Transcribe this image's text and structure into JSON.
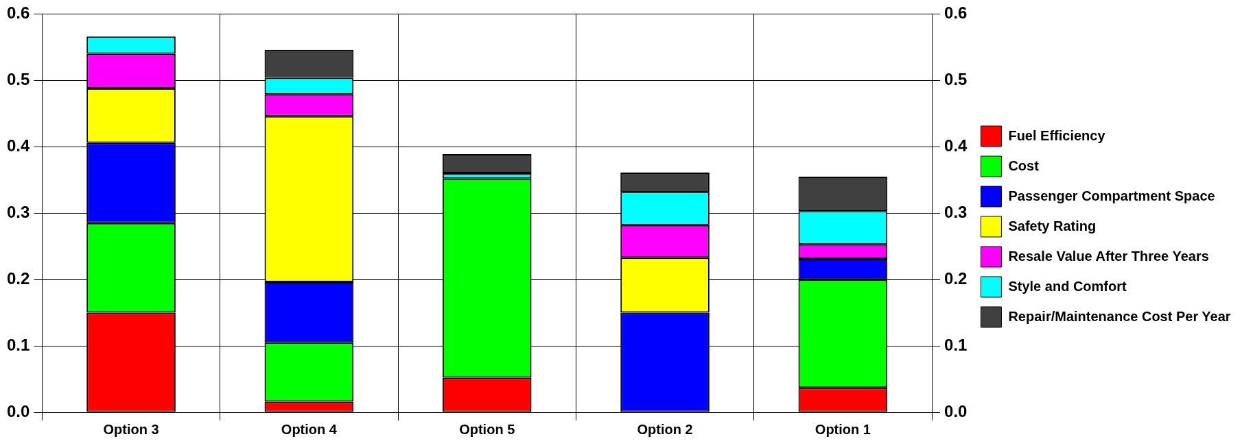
{
  "chart_data": {
    "type": "bar",
    "stacked": true,
    "categories": [
      "Option 3",
      "Option 4",
      "Option 5",
      "Option 2",
      "Option 1"
    ],
    "series": [
      {
        "name": "Fuel Efficiency",
        "color": "#ff0000",
        "values": [
          0.15,
          0.016,
          0.052,
          0,
          0.037
        ]
      },
      {
        "name": "Cost",
        "color": "#00ff00",
        "values": [
          0.135,
          0.089,
          0.3,
          0,
          0.163
        ]
      },
      {
        "name": "Passenger Compartment Space",
        "color": "#0000ff",
        "values": [
          0.121,
          0.091,
          0,
          0.15,
          0.031
        ]
      },
      {
        "name": "Safety Rating",
        "color": "#ffff00",
        "values": [
          0.082,
          0.25,
          0,
          0.083,
          0
        ]
      },
      {
        "name": "Resale Value After Three Years",
        "color": "#ff00ff",
        "values": [
          0.052,
          0.033,
          0,
          0.049,
          0.022
        ]
      },
      {
        "name": "Style and Comfort",
        "color": "#00ffff",
        "values": [
          0.026,
          0.025,
          0.008,
          0.05,
          0.05
        ]
      },
      {
        "name": "Repair/Maintenance Cost Per Year",
        "color": "#404040",
        "values": [
          0,
          0.042,
          0.029,
          0.029,
          0.052
        ]
      }
    ],
    "ylim": [
      0,
      0.6
    ],
    "yticks": [
      {
        "value": 0,
        "label": "0.0"
      },
      0.1,
      0.2,
      0.3,
      0.4,
      0.5,
      0.6
    ],
    "y2lim": [
      0,
      0.6
    ],
    "y2ticks": [
      {
        "value": 0,
        "label": "0.0"
      },
      0.1,
      0.2,
      0.3,
      0.4,
      0.5,
      0.6
    ],
    "grid": true,
    "legend": "right"
  }
}
